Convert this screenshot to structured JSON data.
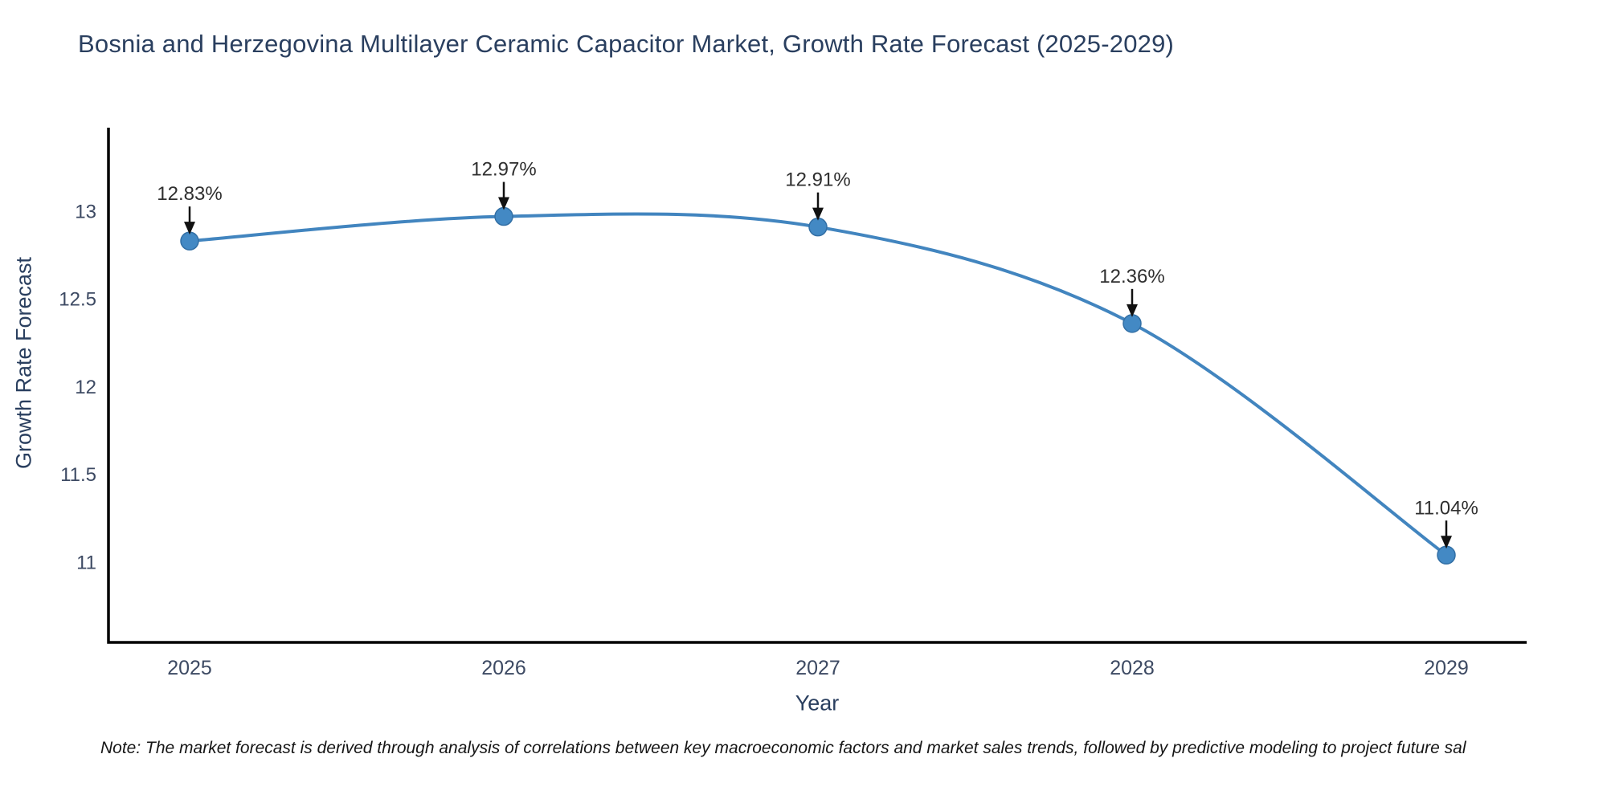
{
  "chart_data": {
    "type": "line",
    "title": "Bosnia and Herzegovina Multilayer Ceramic Capacitor Market, Growth Rate Forecast (2025-2029)",
    "xlabel": "Year",
    "ylabel": "Growth Rate Forecast",
    "x": [
      "2025",
      "2026",
      "2027",
      "2028",
      "2029"
    ],
    "series": [
      {
        "name": "Growth Rate Forecast",
        "values": [
          12.83,
          12.97,
          12.91,
          12.36,
          11.04
        ],
        "point_labels": [
          "12.83%",
          "12.97%",
          "12.91%",
          "12.36%",
          "11.04%"
        ]
      }
    ],
    "y_ticks": [
      11,
      11.5,
      12,
      12.5,
      13
    ],
    "ylim": [
      10.54,
      13.48
    ],
    "grid": false,
    "legend": false,
    "curve": "spline",
    "markers": true,
    "colors": {
      "line": "#4285bf",
      "marker_fill": "#4389c4",
      "marker_edge": "#326fa5",
      "axis_line": "#000000",
      "tick_label": "#3d4a63",
      "annotation_text": "#2f2f2f",
      "annotation_arrow": "#111111",
      "title_text": "#2a3f5f"
    }
  },
  "note": {
    "text": "Note: The market forecast is derived through analysis of correlations between key macroeconomic factors and market sales trends, followed by predictive modeling to project future sal"
  }
}
